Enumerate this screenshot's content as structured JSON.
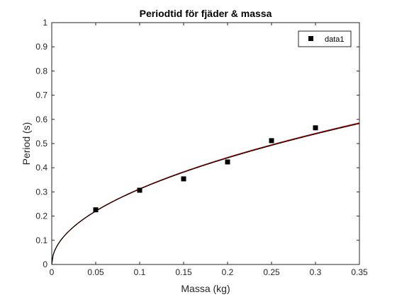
{
  "chart_data": {
    "type": "scatter",
    "title": "Periodtid för fjäder & massa",
    "xlabel": "Massa (kg)",
    "ylabel": "Period (s)",
    "xlim": [
      0,
      0.35
    ],
    "ylim": [
      0,
      1
    ],
    "x_ticks": [
      "0",
      "0.05",
      "0.1",
      "0.15",
      "0.2",
      "0.25",
      "0.3",
      "0.35"
    ],
    "y_ticks": [
      "0",
      "0.1",
      "0.2",
      "0.3",
      "0.4",
      "0.5",
      "0.6",
      "0.7",
      "0.8",
      "0.9",
      "1"
    ],
    "grid": false,
    "legend_position": "top-right",
    "series": [
      {
        "name": "data1",
        "kind": "markers",
        "marker": "square",
        "color": "#000000",
        "x": [
          0.05,
          0.1,
          0.15,
          0.2,
          0.25,
          0.3
        ],
        "y": [
          0.226,
          0.307,
          0.354,
          0.424,
          0.512,
          0.565
        ]
      },
      {
        "kind": "curve",
        "color": "#d40000",
        "function": "y = a*sqrt(x)",
        "a": 0.99
      },
      {
        "kind": "curve",
        "color": "#000000",
        "function": "y = a*sqrt(x)",
        "a": 0.985
      }
    ]
  },
  "colors": {
    "axes": "#262626",
    "background": "#ffffff"
  }
}
